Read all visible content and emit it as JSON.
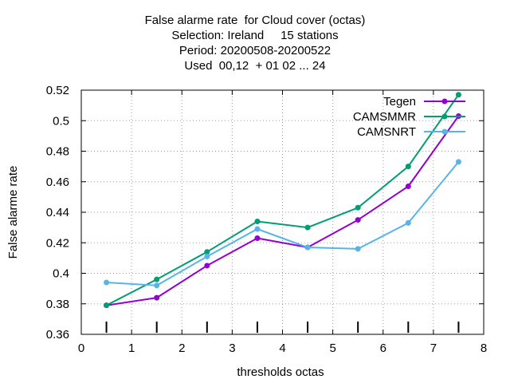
{
  "chart_data": {
    "type": "line",
    "title_lines": [
      "False alarme rate  for Cloud cover (octas)",
      "Selection: Ireland     15 stations",
      "Period: 20200508-20200522",
      "Used  00,12  + 01 02 ... 24"
    ],
    "xlabel": "thresholds octas",
    "ylabel": "False alarme rate",
    "xlim": [
      0,
      8
    ],
    "ylim": [
      0.36,
      0.52
    ],
    "x_ticks": [
      0,
      1,
      2,
      3,
      4,
      5,
      6,
      7,
      8
    ],
    "y_ticks": [
      0.36,
      0.38,
      0.4,
      0.42,
      0.44,
      0.46,
      0.48,
      0.5,
      0.52
    ],
    "x_tick_labels": [
      "0",
      "1",
      "2",
      "3",
      "4",
      "5",
      "6",
      "7",
      "8"
    ],
    "y_tick_labels": [
      "0.36",
      "0.38",
      "0.4",
      "0.42",
      "0.44",
      "0.46",
      "0.48",
      "0.5",
      "0.52"
    ],
    "grid": true,
    "legend_position": "top-right",
    "x": [
      0.5,
      1.5,
      2.5,
      3.5,
      4.5,
      5.5,
      6.5,
      7.5
    ],
    "series": [
      {
        "name": "Tegen",
        "color": "#9400d3",
        "values": [
          0.379,
          0.384,
          0.405,
          0.423,
          0.417,
          0.435,
          0.457,
          0.503
        ]
      },
      {
        "name": "CAMSMMR",
        "color": "#009e73",
        "values": [
          0.379,
          0.396,
          0.414,
          0.434,
          0.43,
          0.443,
          0.47,
          0.517
        ]
      },
      {
        "name": "CAMSNRT",
        "color": "#56b4e9",
        "values": [
          0.394,
          0.392,
          0.411,
          0.429,
          0.417,
          0.416,
          0.433,
          0.473
        ]
      }
    ]
  }
}
